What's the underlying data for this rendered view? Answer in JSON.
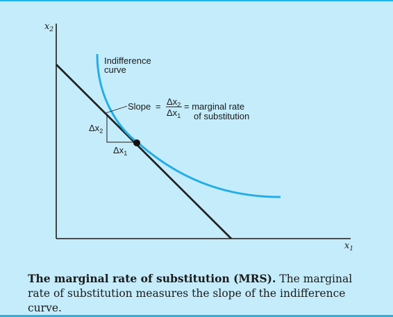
{
  "diagram": {
    "y_axis_label": "x",
    "y_axis_sub": "2",
    "x_axis_label": "x",
    "x_axis_sub": "1",
    "curve_label_line1": "Indifference",
    "curve_label_line2": "curve",
    "slope_label": "Slope",
    "eq_sign": "=",
    "frac_num_delta": "Δx",
    "frac_num_sub": "2",
    "frac_den_delta": "Δx",
    "frac_den_sub": "1",
    "mrs_text_line1": "= marginal rate",
    "mrs_text_line2": "of substitution",
    "dx2_delta": "Δx",
    "dx2_sub": "2",
    "dx1_delta": "Δx",
    "dx1_sub": "1",
    "colors": {
      "curve": "#22aee8",
      "line": "#222222",
      "border": "#22b4e6",
      "background": "#c5ecfb"
    }
  },
  "caption": {
    "title": "The marginal rate of substitution (MRS).",
    "body": "The marginal rate of substitution measures the slope of the indifference curve."
  }
}
